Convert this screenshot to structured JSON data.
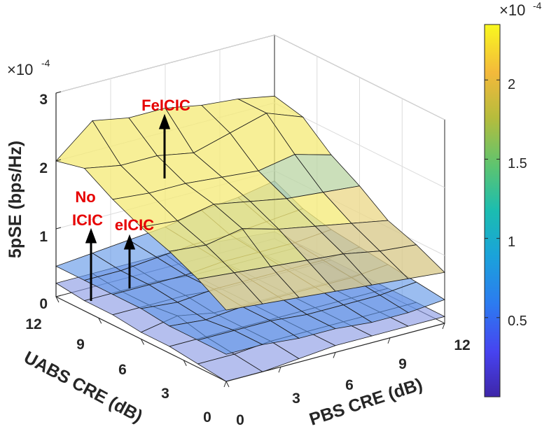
{
  "chart_data": {
    "type": "surface",
    "title": "",
    "zlabel": "5pSE (bps/Hz)",
    "xlabel": "PBS CRE (dB)",
    "ylabel": "UABS CRE (dB)",
    "x_ticks": [
      "0",
      "3",
      "6",
      "9",
      "12"
    ],
    "y_ticks": [
      "0",
      "3",
      "6",
      "9",
      "12"
    ],
    "z_ticks": [
      "0",
      "1",
      "2",
      "3"
    ],
    "z_exponent": {
      "base": "×10",
      "power": "-4"
    },
    "zlim": [
      0,
      3
    ],
    "x": [
      0,
      2,
      4,
      6,
      8,
      10,
      12
    ],
    "y": [
      0,
      2,
      4,
      6,
      8,
      10,
      12
    ],
    "series": [
      {
        "name": "FeICIC",
        "color": "#f2e060",
        "z": [
          [
            1.05,
            1.0,
            0.95,
            0.9,
            0.85,
            0.8,
            0.75
          ],
          [
            1.3,
            1.25,
            1.2,
            1.15,
            1.1,
            1.0,
            0.95
          ],
          [
            1.5,
            1.45,
            1.55,
            1.4,
            1.3,
            1.2,
            1.1
          ],
          [
            1.65,
            1.6,
            1.7,
            1.6,
            1.5,
            1.45,
            1.4
          ],
          [
            1.85,
            1.8,
            1.8,
            1.75,
            1.7,
            1.8,
            1.65
          ],
          [
            2.1,
            2.0,
            2.0,
            1.9,
            2.05,
            2.2,
            2.0
          ],
          [
            2.0,
            2.45,
            2.35,
            2.35,
            2.25,
            2.2,
            2.1
          ]
        ]
      },
      {
        "name": "eICIC",
        "color": "#5b8fe0",
        "z": [
          [
            0.4,
            0.4,
            0.35,
            0.35,
            0.3,
            0.3,
            0.35
          ],
          [
            0.4,
            0.4,
            0.4,
            0.35,
            0.35,
            0.35,
            0.4
          ],
          [
            0.4,
            0.35,
            0.4,
            0.4,
            0.4,
            0.4,
            0.45
          ],
          [
            0.45,
            0.4,
            0.45,
            0.45,
            0.45,
            0.45,
            0.5
          ],
          [
            0.45,
            0.45,
            0.45,
            0.5,
            0.5,
            0.5,
            0.55
          ],
          [
            0.45,
            0.45,
            0.5,
            0.55,
            0.55,
            0.6,
            0.65
          ],
          [
            0.45,
            0.5,
            0.55,
            0.6,
            0.7,
            0.75,
            0.85
          ]
        ]
      },
      {
        "name": "No ICIC",
        "color": "#8090e0",
        "z": [
          [
            0.0,
            0.0,
            0.05,
            0.1,
            0.1,
            0.1,
            0.1
          ],
          [
            0.05,
            0.05,
            0.1,
            0.1,
            0.1,
            0.1,
            0.1
          ],
          [
            0.1,
            0.1,
            0.1,
            0.1,
            0.1,
            0.1,
            0.1
          ],
          [
            0.1,
            0.2,
            0.1,
            0.1,
            0.1,
            0.1,
            0.1
          ],
          [
            0.15,
            0.15,
            0.15,
            0.1,
            0.1,
            0.1,
            0.1
          ],
          [
            0.15,
            0.15,
            0.15,
            0.1,
            0.1,
            0.1,
            0.1
          ],
          [
            0.2,
            0.2,
            0.2,
            0.2,
            0.2,
            0.15,
            0.1
          ]
        ]
      }
    ],
    "annotations": [
      {
        "text": "FeICIC",
        "series": "FeICIC"
      },
      {
        "text": "No",
        "series": "No ICIC"
      },
      {
        "text": "ICIC",
        "series": "No ICIC"
      },
      {
        "text": "eICIC",
        "series": "eICIC"
      }
    ],
    "colorbar": {
      "ticks": [
        "0.5",
        "1",
        "1.5",
        "2"
      ],
      "tick_values": [
        0.5,
        1.0,
        1.5,
        2.0
      ],
      "range": [
        0.0,
        2.35
      ],
      "exponent": {
        "base": "×10",
        "power": "-4"
      },
      "colormap": "parula"
    }
  }
}
